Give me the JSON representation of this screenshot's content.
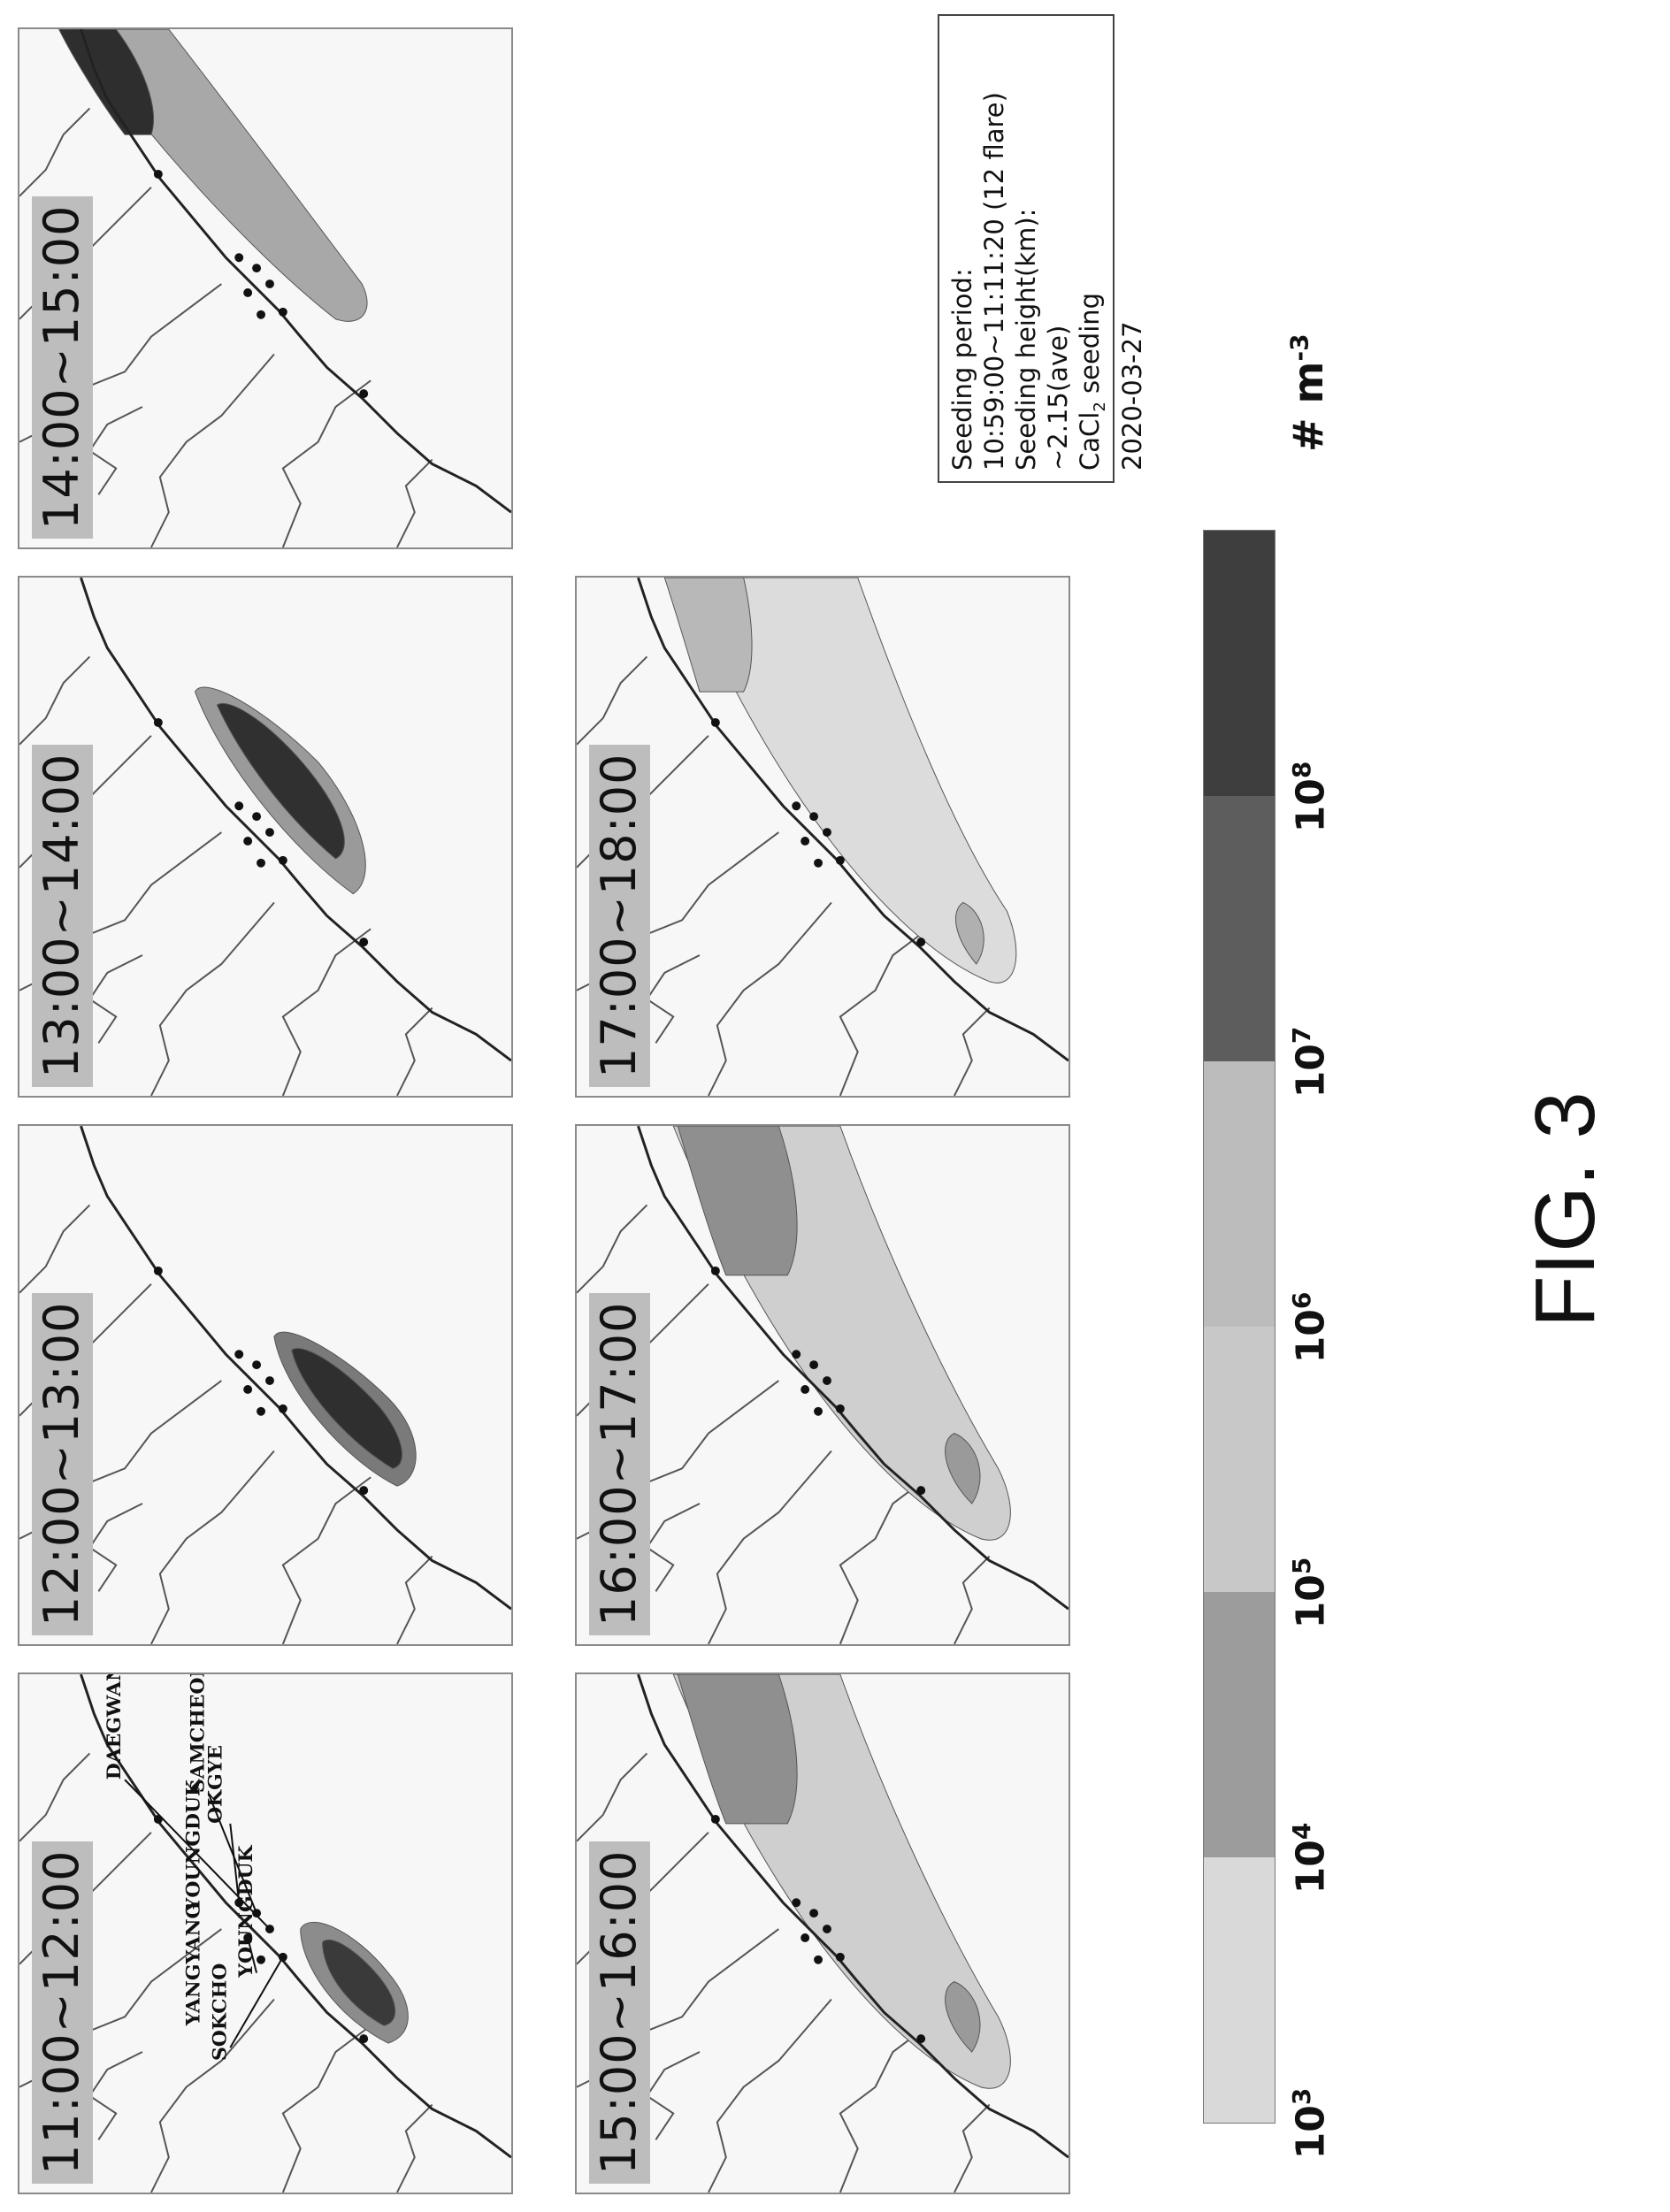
{
  "figure": {
    "caption": "FIG. 3"
  },
  "panels": [
    {
      "time": "11:00~12:00",
      "plume": "small"
    },
    {
      "time": "12:00~13:00",
      "plume": "medium"
    },
    {
      "time": "13:00~14:00",
      "plume": "large"
    },
    {
      "time": "14:00~15:00",
      "plume": "far"
    },
    {
      "time": "15:00~16:00",
      "plume": "spread"
    },
    {
      "time": "16:00~17:00",
      "plume": "spread"
    },
    {
      "time": "17:00~18:00",
      "plume": "faint"
    }
  ],
  "site_labels": {
    "sokcho": "SOKCHO",
    "yangyang": "YANGYANG",
    "youngduk_top": "YOUNGDUK",
    "youngduk": "YOUNGDUK",
    "okgye": "OKGYE",
    "samcheok": "SAMCHEOK",
    "daegwanryeong": "DAEGWANRYEONG"
  },
  "colorbar": {
    "colors": [
      "#d9d9d9",
      "#9c9c9c",
      "#c8c8c8",
      "#bcbcbc",
      "#5d5d5d",
      "#3e3e3e"
    ],
    "ticks": [
      {
        "base": "10",
        "exp": "3"
      },
      {
        "base": "10",
        "exp": "4"
      },
      {
        "base": "10",
        "exp": "5"
      },
      {
        "base": "10",
        "exp": "6"
      },
      {
        "base": "10",
        "exp": "7"
      },
      {
        "base": "10",
        "exp": "8"
      }
    ],
    "unit": {
      "prefix": "# m",
      "exp": "-3"
    }
  },
  "info_box": {
    "line1": "Seeding period:",
    "line2": "10:59:00~11:11:20 (12 flare)",
    "line3": "Seeding height(km):",
    "line4": "~2.15(ave)",
    "line5_pre": "CaCl",
    "line5_sub": "2",
    "line5_post": " seeding",
    "line6": "2020-03-27"
  }
}
